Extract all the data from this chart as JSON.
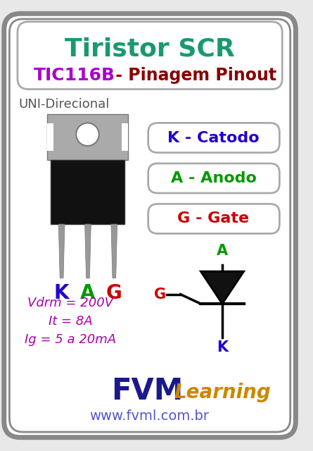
{
  "title1": "Tiristor SCR",
  "title2": "TIC116B",
  "title2b": " - Pinagem Pinout",
  "bg_color": "#e8e8e8",
  "outer_border_color": "#888888",
  "inner_bg_color": "#ffffff",
  "title1_color": "#1a9970",
  "title2_color": "#aa00cc",
  "title2b_color": "#880000",
  "uni_text": "UNI-Direcional",
  "uni_color": "#555555",
  "box1_text": "K - Catodo",
  "box1_color": "#2200cc",
  "box2_text": "A - Anodo",
  "box2_color": "#009900",
  "box3_text": "G - Gate",
  "box3_color": "#cc0000",
  "pin_k": "K",
  "pin_a": "A",
  "pin_g": "G",
  "pin_k_color": "#2200cc",
  "pin_a_color": "#009900",
  "pin_g_color": "#cc0000",
  "spec1": "Vdrm = 200V",
  "spec2": "It = 8A",
  "spec3": "Ig = 5 a 20mA",
  "spec_color": "#aa00aa",
  "fvm_color": "#1a1a8c",
  "learning_color": "#cc8800",
  "web_color": "#5555cc",
  "web_text": "www.fvml.com.br",
  "scr_symbol_color": "#111111",
  "tab_color": "#aaaaaa",
  "body_color": "#111111",
  "leg_color": "#999999",
  "hole_color": "#ffffff"
}
